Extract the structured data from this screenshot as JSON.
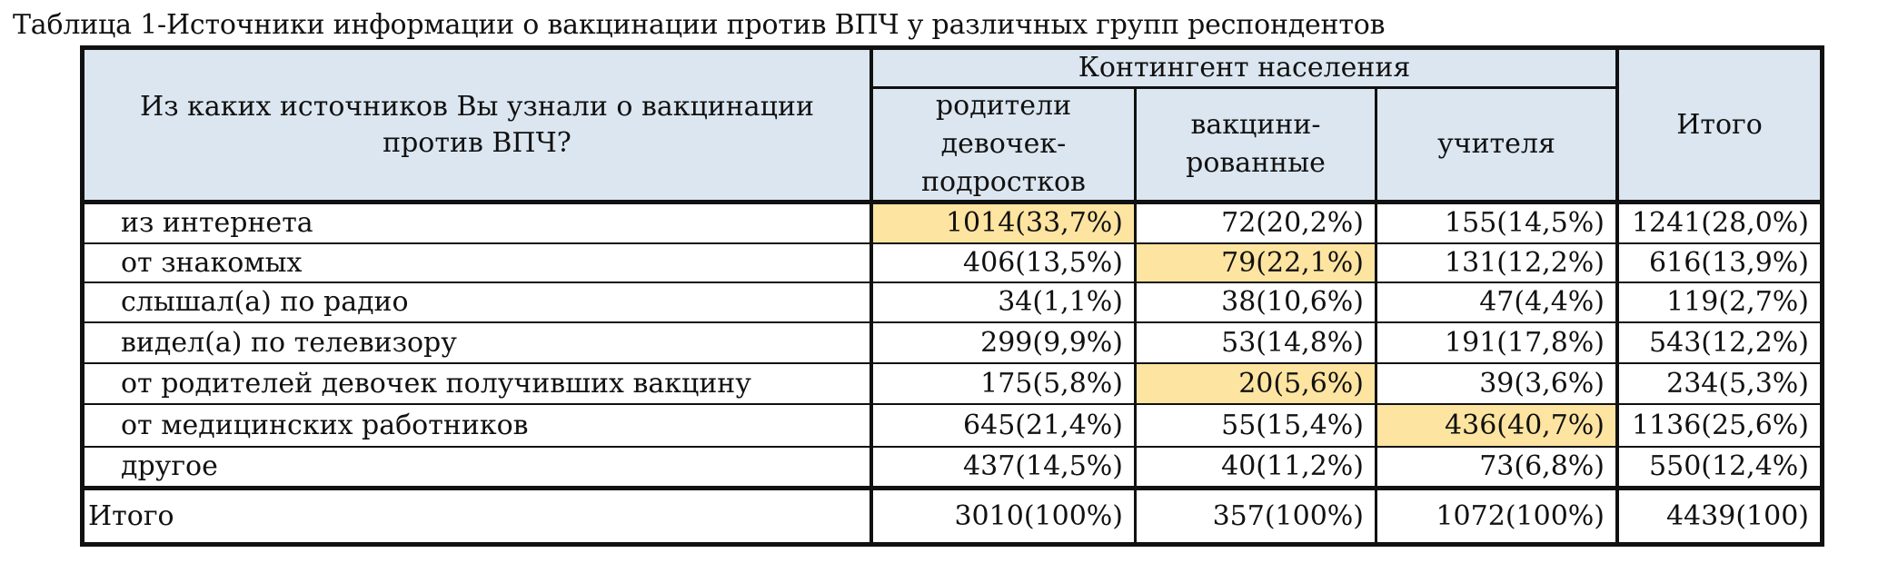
{
  "caption": "Таблица 1-Источники информации о вакцинации против ВПЧ у различных групп респондентов",
  "header": {
    "question": "Из каких источников Вы узнали о вакцинации против ВПЧ?",
    "group": "Контингент населения",
    "col1": "родители девочек-подростков",
    "col2": "вакцини-рованные",
    "col3": "учителя",
    "total": "Итого"
  },
  "highlight_color": "#fde4a0",
  "header_color": "#dce6f0",
  "rows": [
    {
      "label": "из интернета",
      "c1": "1014(33,7%)",
      "c2": "72(20,2%)",
      "c3": "155(14,5%)",
      "total": "1241(28,0%)",
      "highlight": [
        1
      ]
    },
    {
      "label": "от знакомых",
      "c1": "406(13,5%)",
      "c2": "79(22,1%)",
      "c3": "131(12,2%)",
      "total": "616(13,9%)",
      "highlight": [
        2
      ]
    },
    {
      "label": "слышал(а) по радио",
      "c1": "34(1,1%)",
      "c2": "38(10,6%)",
      "c3": "47(4,4%)",
      "total": "119(2,7%)",
      "highlight": []
    },
    {
      "label": "видел(а) по телевизору",
      "c1": "299(9,9%)",
      "c2": "53(14,8%)",
      "c3": "191(17,8%)",
      "total": "543(12,2%)",
      "highlight": []
    },
    {
      "label": "от родителей девочек получивших вакцину",
      "c1": "175(5,8%)",
      "c2": "20(5,6%)",
      "c3": "39(3,6%)",
      "total": "234(5,3%)",
      "highlight": [
        2
      ]
    },
    {
      "label": "от медицинских работников",
      "c1": "645(21,4%)",
      "c2": "55(15,4%)",
      "c3": "436(40,7%)",
      "total": "1136(25,6%)",
      "highlight": [
        3
      ]
    },
    {
      "label": "другое",
      "c1": "437(14,5%)",
      "c2": "40(11,2%)",
      "c3": "73(6,8%)",
      "total": "550(12,4%)",
      "highlight": []
    }
  ],
  "totals": {
    "label": "Итого",
    "c1": "3010(100%)",
    "c2": "357(100%)",
    "c3": "1072(100%)",
    "total": "4439(100)"
  }
}
